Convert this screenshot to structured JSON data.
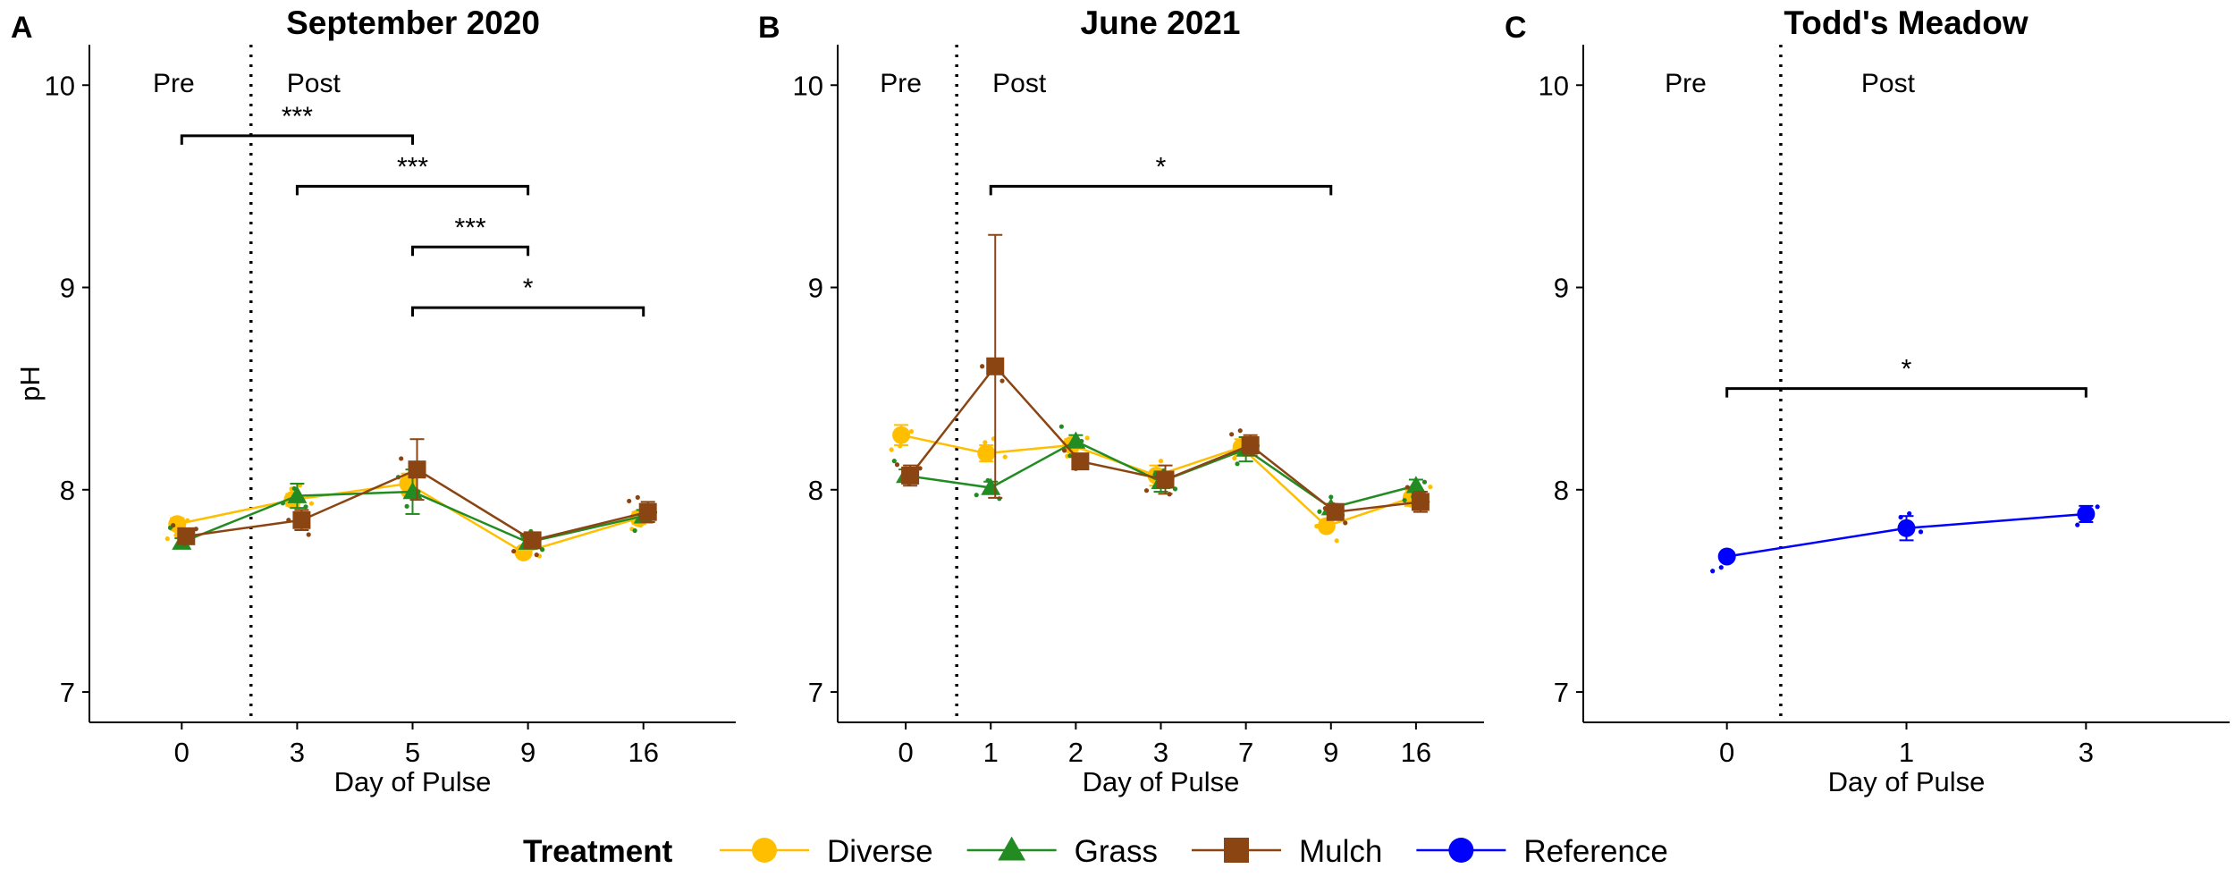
{
  "chart_data": [
    {
      "type": "line",
      "panel_label": "A",
      "title": "September 2020",
      "xlabel": "Day of Pulse",
      "ylabel": "pH",
      "categories": [
        "0",
        "3",
        "5",
        "9",
        "16"
      ],
      "ylim": [
        6.85,
        10.2
      ],
      "yticks": [
        "7",
        "8",
        "9",
        "10"
      ],
      "divider_after_category_index": 0,
      "divider_fraction": 0.6,
      "phase_labels": [
        "Pre",
        "Post"
      ],
      "series": [
        {
          "name": "Diverse",
          "values": [
            7.83,
            7.95,
            8.03,
            7.69,
            7.86
          ],
          "errors": [
            0.03,
            0.03,
            0.05,
            0.02,
            0.03
          ]
        },
        {
          "name": "Grass",
          "values": [
            7.74,
            7.97,
            7.99,
            7.74,
            7.87
          ],
          "errors": [
            0.02,
            0.06,
            0.11,
            0.02,
            0.03
          ]
        },
        {
          "name": "Mulch",
          "values": [
            7.77,
            7.85,
            8.1,
            7.75,
            7.89
          ],
          "errors": [
            0.03,
            0.05,
            0.15,
            0.02,
            0.05
          ]
        }
      ],
      "significance": [
        {
          "from": 0,
          "to": 2,
          "y": 9.75,
          "label": "***"
        },
        {
          "from": 1,
          "to": 3,
          "y": 9.5,
          "label": "***"
        },
        {
          "from": 2,
          "to": 3,
          "y": 9.2,
          "label": "***"
        },
        {
          "from": 2,
          "to": 4,
          "y": 8.9,
          "label": "*"
        }
      ]
    },
    {
      "type": "line",
      "panel_label": "B",
      "title": "June 2021",
      "xlabel": "Day of Pulse",
      "ylabel": "",
      "categories": [
        "0",
        "1",
        "2",
        "3",
        "7",
        "9",
        "16"
      ],
      "ylim": [
        6.85,
        10.2
      ],
      "yticks": [
        "7",
        "8",
        "9",
        "10"
      ],
      "divider_after_category_index": 0,
      "divider_fraction": 0.6,
      "phase_labels": [
        "Pre",
        "Post"
      ],
      "series": [
        {
          "name": "Diverse",
          "values": [
            8.27,
            8.18,
            8.22,
            8.07,
            8.21,
            7.82,
            7.96
          ],
          "errors": [
            0.05,
            0.04,
            0.03,
            0.05,
            0.04,
            0.02,
            0.04
          ]
        },
        {
          "name": "Grass",
          "values": [
            8.07,
            8.01,
            8.24,
            8.04,
            8.2,
            7.91,
            8.02
          ],
          "errors": [
            0.03,
            0.03,
            0.03,
            0.05,
            0.06,
            0.02,
            0.03
          ]
        },
        {
          "name": "Mulch",
          "values": [
            8.07,
            8.61,
            8.14,
            8.05,
            8.22,
            7.89,
            7.94
          ],
          "errors": [
            0.05,
            0.65,
            0.03,
            0.07,
            0.05,
            0.02,
            0.05
          ]
        }
      ],
      "significance": [
        {
          "from": 1,
          "to": 5,
          "y": 9.5,
          "label": "*"
        }
      ]
    },
    {
      "type": "line",
      "panel_label": "C",
      "title": "Todd's Meadow",
      "xlabel": "Day of Pulse",
      "ylabel": "",
      "categories": [
        "0",
        "1",
        "3"
      ],
      "ylim": [
        6.85,
        10.2
      ],
      "yticks": [
        "7",
        "8",
        "9",
        "10"
      ],
      "divider_after_category_index": 0,
      "divider_fraction": 0.3,
      "phase_labels": [
        "Pre",
        "Post"
      ],
      "series": [
        {
          "name": "Reference",
          "values": [
            7.67,
            7.81,
            7.88
          ],
          "errors": [
            0.02,
            0.06,
            0.04
          ]
        }
      ],
      "significance": [
        {
          "from": 0,
          "to": 2,
          "y": 8.5,
          "label": "*"
        }
      ]
    }
  ],
  "legend": {
    "title": "Treatment",
    "items": [
      {
        "label": "Diverse",
        "color": "#FFBF00",
        "shape": "circle"
      },
      {
        "label": "Grass",
        "color": "#228B22",
        "shape": "triangle"
      },
      {
        "label": "Mulch",
        "color": "#8B4513",
        "shape": "square"
      },
      {
        "label": "Reference",
        "color": "#0000FF",
        "shape": "circle"
      }
    ]
  },
  "colors": {
    "Diverse": "#FFBF00",
    "Grass": "#228B22",
    "Mulch": "#8B4513",
    "Reference": "#0000FF"
  }
}
